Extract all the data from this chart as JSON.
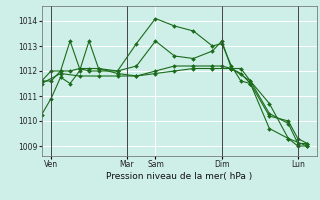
{
  "bg_color": "#ceeee8",
  "grid_color": "#ffffff",
  "line_color": "#1a6b1a",
  "marker_color": "#1a6b1a",
  "ylabel_ticks": [
    1009,
    1010,
    1011,
    1012,
    1013,
    1014
  ],
  "ylim": [
    1008.6,
    1014.6
  ],
  "xlim": [
    0,
    14.5
  ],
  "xlabel": "Pression niveau de la mer( hPa )",
  "day_labels": [
    [
      "Ven",
      0.5
    ],
    [
      "Mar",
      4.5
    ],
    [
      "Sam",
      6.0
    ],
    [
      "Dim",
      9.5
    ],
    [
      "Lun",
      13.5
    ]
  ],
  "vlines": [
    0.5,
    4.5,
    9.5,
    13.5
  ],
  "series": [
    {
      "x": [
        0,
        0.5,
        1,
        1.5,
        2,
        2.5,
        3,
        4,
        5,
        6,
        7,
        8,
        9,
        9.5,
        10,
        10.5,
        11,
        12,
        13,
        13.5,
        14
      ],
      "y": [
        1010.25,
        1010.9,
        1011.75,
        1011.5,
        1012.0,
        1013.2,
        1012.1,
        1012.0,
        1013.1,
        1014.1,
        1013.8,
        1013.6,
        1013.0,
        1013.1,
        1012.2,
        1011.6,
        1011.5,
        1009.7,
        1009.3,
        1009.0,
        1009.0
      ]
    },
    {
      "x": [
        0,
        0.5,
        1,
        1.5,
        2,
        2.5,
        3,
        4,
        5,
        6,
        7,
        8,
        9,
        9.5,
        10,
        10.5,
        11,
        12,
        13,
        13.5,
        14
      ],
      "y": [
        1011.6,
        1012.0,
        1012.0,
        1013.2,
        1012.1,
        1012.0,
        1012.0,
        1012.0,
        1012.2,
        1013.2,
        1012.6,
        1012.5,
        1012.8,
        1013.2,
        1012.1,
        1012.1,
        1011.6,
        1010.3,
        1009.9,
        1009.1,
        1009.1
      ]
    },
    {
      "x": [
        0,
        0.5,
        1,
        1.5,
        2,
        2.5,
        3,
        4,
        5,
        6,
        7,
        8,
        9,
        9.5,
        10,
        10.5,
        11,
        12,
        13,
        13.5,
        14
      ],
      "y": [
        1011.6,
        1011.6,
        1012.0,
        1012.0,
        1012.1,
        1012.1,
        1012.1,
        1011.9,
        1011.8,
        1012.0,
        1012.2,
        1012.2,
        1012.2,
        1012.2,
        1012.1,
        1011.9,
        1011.5,
        1010.2,
        1010.0,
        1009.3,
        1009.1
      ]
    },
    {
      "x": [
        0,
        1,
        2,
        3,
        4,
        5,
        6,
        7,
        8,
        9,
        10,
        11,
        12,
        13,
        14
      ],
      "y": [
        1011.5,
        1011.9,
        1011.8,
        1011.8,
        1011.8,
        1011.8,
        1011.9,
        1012.0,
        1012.1,
        1012.1,
        1012.1,
        1011.6,
        1010.7,
        1009.3,
        1009.0
      ]
    }
  ]
}
